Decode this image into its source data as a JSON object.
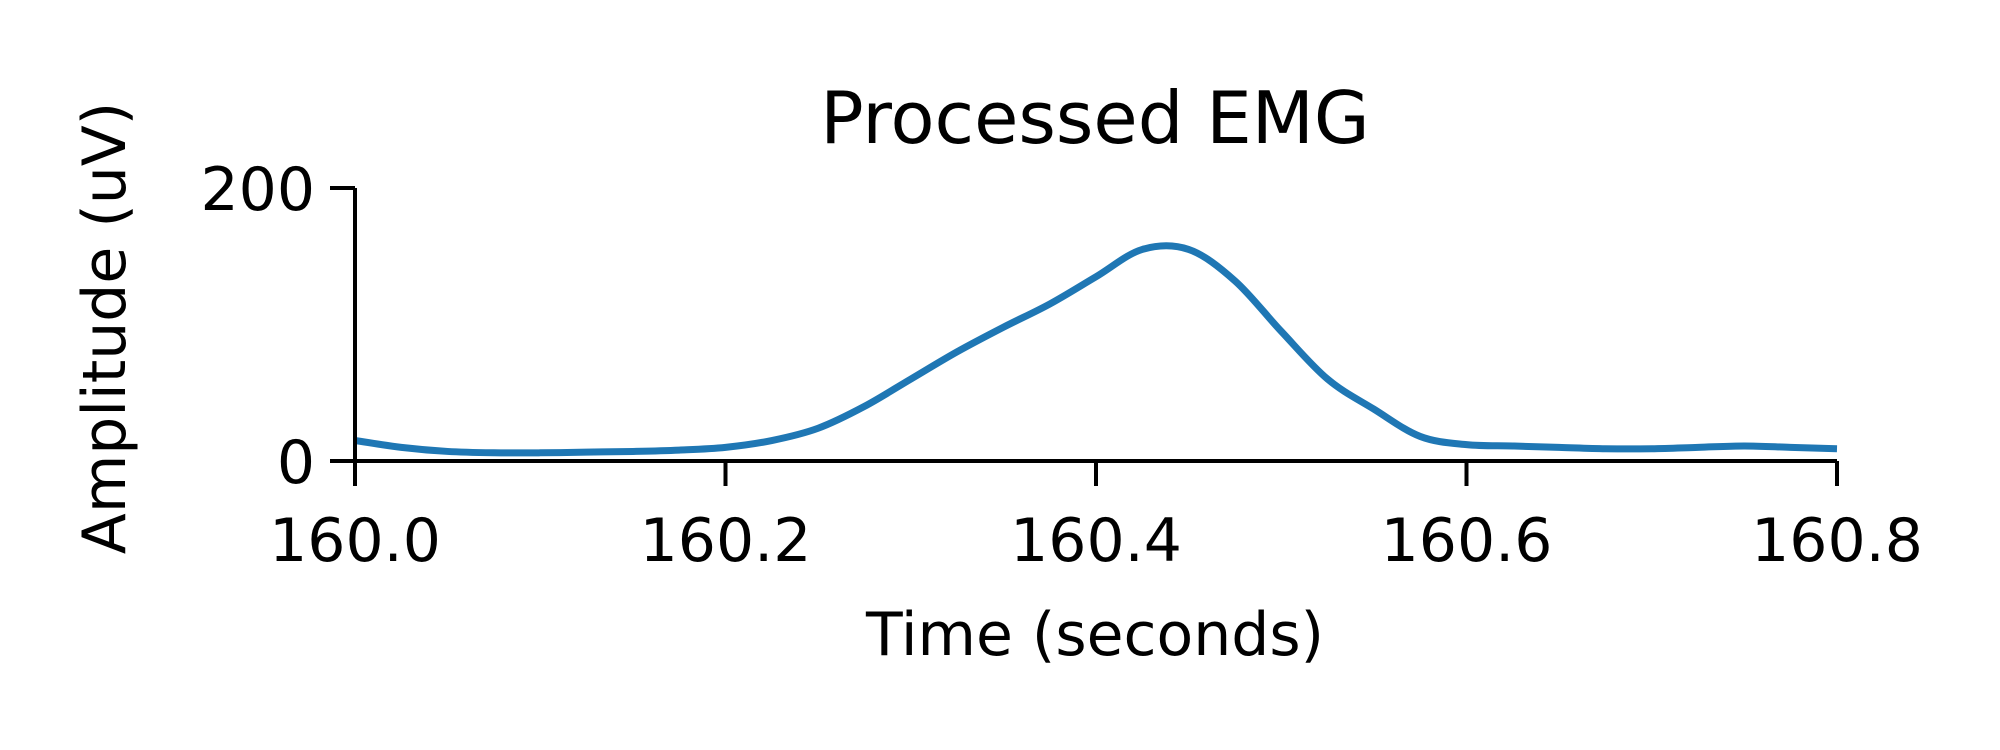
{
  "chart_data": {
    "type": "line",
    "title": "Processed EMG",
    "xlabel": "Time (seconds)",
    "ylabel": "Amplitude (uV)",
    "xlim": [
      160.0,
      160.8
    ],
    "ylim": [
      0,
      200
    ],
    "xticks": [
      160.0,
      160.2,
      160.4,
      160.6,
      160.8
    ],
    "xtick_labels": [
      "160.0",
      "160.2",
      "160.4",
      "160.6",
      "160.8"
    ],
    "yticks": [
      0,
      200
    ],
    "ytick_labels": [
      "0",
      "200"
    ],
    "grid": false,
    "legend": "none",
    "series": [
      {
        "color": "#1f77b4",
        "x": [
          160.0,
          160.025,
          160.05,
          160.075,
          160.1,
          160.125,
          160.15,
          160.175,
          160.2,
          160.225,
          160.25,
          160.275,
          160.3,
          160.325,
          160.35,
          160.375,
          160.4,
          160.425,
          160.45,
          160.475,
          160.5,
          160.525,
          160.55,
          160.575,
          160.6,
          160.625,
          160.65,
          160.675,
          160.7,
          160.725,
          160.75,
          160.775,
          160.8
        ],
        "y": [
          15,
          10,
          7,
          6,
          6,
          6.5,
          7,
          8,
          10,
          15,
          24,
          40,
          60,
          80,
          98,
          115,
          135,
          155,
          155,
          132,
          95,
          60,
          38,
          18,
          12,
          11,
          10,
          9,
          9,
          10,
          11,
          10,
          9
        ]
      }
    ]
  }
}
